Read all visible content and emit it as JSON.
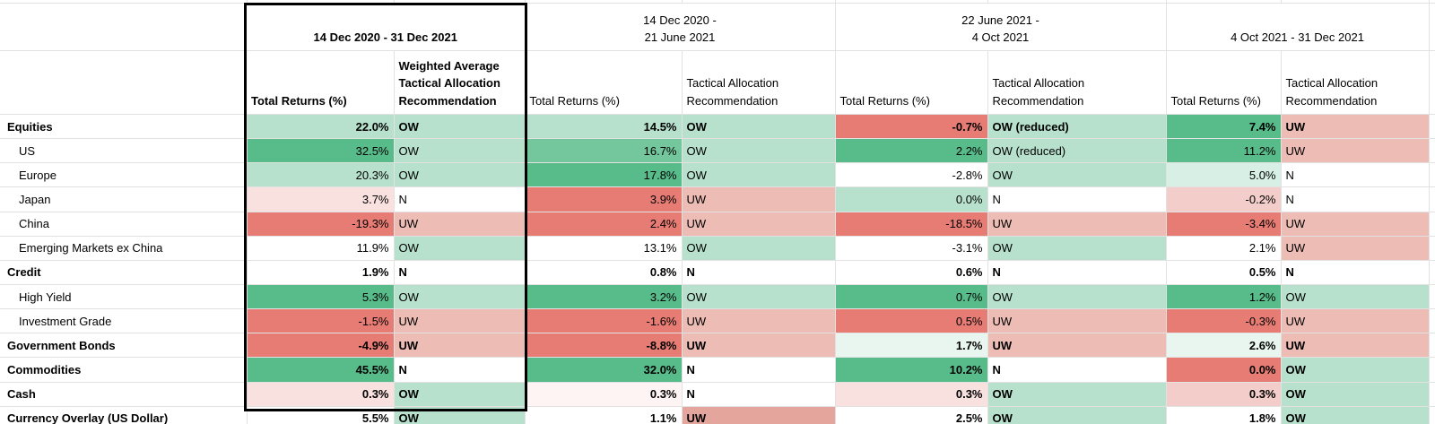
{
  "palette": {
    "G3": "#57bb8a",
    "G2": "#74c69c",
    "G1": "#b7e1cd",
    "G0": "#d7efe4",
    "G00": "#e9f6f0",
    "W": "#ffffff",
    "R00": "#fdf4f3",
    "R0": "#f8e1de",
    "R1": "#f3cdc9",
    "R2": "#edbcb5",
    "R2b": "#e4a59d",
    "R3": "#e67c73"
  },
  "table": {
    "groups": [
      {
        "period": "14 Dec 2020 - 31 Dec 2021",
        "bold": true,
        "boxed": true,
        "cols": [
          "Total Returns (%)",
          "Weighted Average Tactical Allocation Recommendation"
        ]
      },
      {
        "period": "14 Dec 2020 -\n21 June 2021",
        "bold": false,
        "boxed": false,
        "cols": [
          "Total Returns (%)",
          "Tactical Allocation Recommendation"
        ]
      },
      {
        "period": "22 June 2021 -\n4 Oct 2021",
        "bold": false,
        "boxed": false,
        "cols": [
          "Total Returns (%)",
          "Tactical Allocation Recommendation"
        ]
      },
      {
        "period": "4 Oct 2021 - 31 Dec 2021",
        "bold": false,
        "boxed": false,
        "cols": [
          "Total Returns (%)",
          "Tactical Allocation Recommendation"
        ]
      }
    ],
    "rows": [
      {
        "label": "Equities",
        "bold": true,
        "indent": false,
        "cells": [
          [
            "22.0%",
            "G1"
          ],
          [
            "OW",
            "G1"
          ],
          [
            "14.5%",
            "G1"
          ],
          [
            "OW",
            "G1"
          ],
          [
            "-0.7%",
            "R3"
          ],
          [
            "OW (reduced)",
            "G1"
          ],
          [
            "7.4%",
            "G3"
          ],
          [
            "UW",
            "R2"
          ]
        ]
      },
      {
        "label": "US",
        "bold": false,
        "indent": true,
        "cells": [
          [
            "32.5%",
            "G3"
          ],
          [
            "OW",
            "G1"
          ],
          [
            "16.7%",
            "G2"
          ],
          [
            "OW",
            "G1"
          ],
          [
            "2.2%",
            "G3"
          ],
          [
            "OW (reduced)",
            "G1"
          ],
          [
            "11.2%",
            "G3"
          ],
          [
            "UW",
            "R2"
          ]
        ]
      },
      {
        "label": "Europe",
        "bold": false,
        "indent": true,
        "cells": [
          [
            "20.3%",
            "G1"
          ],
          [
            "OW",
            "G1"
          ],
          [
            "17.8%",
            "G3"
          ],
          [
            "OW",
            "G1"
          ],
          [
            "-2.8%",
            "W"
          ],
          [
            "OW",
            "G1"
          ],
          [
            "5.0%",
            "G0"
          ],
          [
            "N",
            "W"
          ]
        ]
      },
      {
        "label": "Japan",
        "bold": false,
        "indent": true,
        "cells": [
          [
            "3.7%",
            "R0"
          ],
          [
            "N",
            "W"
          ],
          [
            "3.9%",
            "R3"
          ],
          [
            "UW",
            "R2"
          ],
          [
            "0.0%",
            "G1"
          ],
          [
            "N",
            "W"
          ],
          [
            "-0.2%",
            "R1"
          ],
          [
            "N",
            "W"
          ]
        ]
      },
      {
        "label": "China",
        "bold": false,
        "indent": true,
        "cells": [
          [
            "-19.3%",
            "R3"
          ],
          [
            "UW",
            "R2"
          ],
          [
            "2.4%",
            "R3"
          ],
          [
            "UW",
            "R2"
          ],
          [
            "-18.5%",
            "R3"
          ],
          [
            "UW",
            "R2"
          ],
          [
            "-3.4%",
            "R3"
          ],
          [
            "UW",
            "R2"
          ]
        ]
      },
      {
        "label": "Emerging Markets ex China",
        "bold": false,
        "indent": true,
        "cells": [
          [
            "11.9%",
            "W"
          ],
          [
            "OW",
            "G1"
          ],
          [
            "13.1%",
            "W"
          ],
          [
            "OW",
            "G1"
          ],
          [
            "-3.1%",
            "W"
          ],
          [
            "OW",
            "G1"
          ],
          [
            "2.1%",
            "W"
          ],
          [
            "UW",
            "R2"
          ]
        ]
      },
      {
        "label": "Credit",
        "bold": true,
        "indent": false,
        "cells": [
          [
            "1.9%",
            "W"
          ],
          [
            "N",
            "W"
          ],
          [
            "0.8%",
            "W"
          ],
          [
            "N",
            "W"
          ],
          [
            "0.6%",
            "W"
          ],
          [
            "N",
            "W"
          ],
          [
            "0.5%",
            "W"
          ],
          [
            "N",
            "W"
          ]
        ]
      },
      {
        "label": "High Yield",
        "bold": false,
        "indent": true,
        "cells": [
          [
            "5.3%",
            "G3"
          ],
          [
            "OW",
            "G1"
          ],
          [
            "3.2%",
            "G3"
          ],
          [
            "OW",
            "G1"
          ],
          [
            "0.7%",
            "G3"
          ],
          [
            "OW",
            "G1"
          ],
          [
            "1.2%",
            "G3"
          ],
          [
            "OW",
            "G1"
          ]
        ]
      },
      {
        "label": "Investment Grade",
        "bold": false,
        "indent": true,
        "cells": [
          [
            "-1.5%",
            "R3"
          ],
          [
            "UW",
            "R2"
          ],
          [
            "-1.6%",
            "R3"
          ],
          [
            "UW",
            "R2"
          ],
          [
            "0.5%",
            "R3"
          ],
          [
            "UW",
            "R2"
          ],
          [
            "-0.3%",
            "R3"
          ],
          [
            "UW",
            "R2"
          ]
        ]
      },
      {
        "label": "Government Bonds",
        "bold": true,
        "indent": false,
        "cells": [
          [
            "-4.9%",
            "R3"
          ],
          [
            "UW",
            "R2"
          ],
          [
            "-8.8%",
            "R3"
          ],
          [
            "UW",
            "R2"
          ],
          [
            "1.7%",
            "G00"
          ],
          [
            "UW",
            "R2"
          ],
          [
            "2.6%",
            "G00"
          ],
          [
            "UW",
            "R2"
          ]
        ]
      },
      {
        "label": "Commodities",
        "bold": true,
        "indent": false,
        "cells": [
          [
            "45.5%",
            "G3"
          ],
          [
            "N",
            "W"
          ],
          [
            "32.0%",
            "G3"
          ],
          [
            "N",
            "W"
          ],
          [
            "10.2%",
            "G3"
          ],
          [
            "N",
            "W"
          ],
          [
            "0.0%",
            "R3"
          ],
          [
            "OW",
            "G1"
          ]
        ]
      },
      {
        "label": "Cash",
        "bold": true,
        "indent": false,
        "cells": [
          [
            "0.3%",
            "R0"
          ],
          [
            "OW",
            "G1"
          ],
          [
            "0.3%",
            "R00"
          ],
          [
            "N",
            "W"
          ],
          [
            "0.3%",
            "R0"
          ],
          [
            "OW",
            "G1"
          ],
          [
            "0.3%",
            "R1"
          ],
          [
            "OW",
            "G1"
          ]
        ]
      },
      {
        "label": "Currency Overlay (US Dollar)",
        "bold": true,
        "indent": false,
        "cells": [
          [
            "5.5%",
            "W"
          ],
          [
            "OW",
            "G1"
          ],
          [
            "1.1%",
            "W"
          ],
          [
            "UW",
            "R2b"
          ],
          [
            "2.5%",
            "W"
          ],
          [
            "OW",
            "G1"
          ],
          [
            "1.8%",
            "W"
          ],
          [
            "OW",
            "G1"
          ]
        ]
      }
    ]
  }
}
